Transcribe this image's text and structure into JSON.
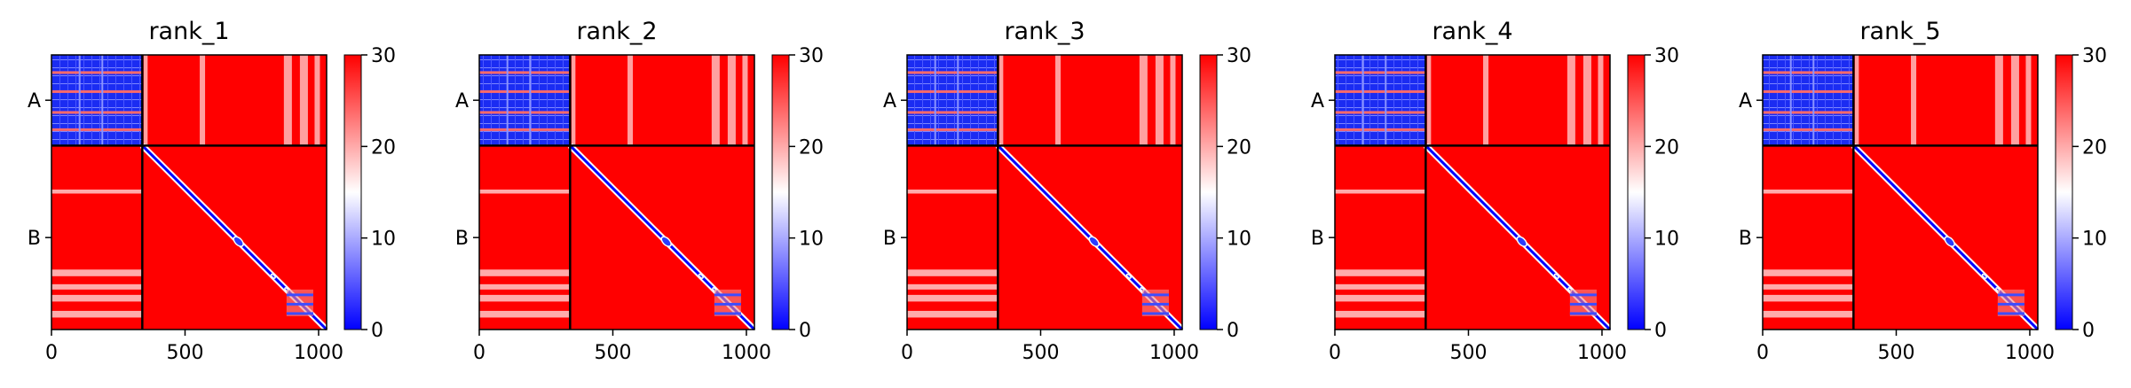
{
  "chart_data": [
    {
      "type": "heatmap",
      "title": "rank_1",
      "xlim": [
        0,
        1030
      ],
      "ylim": [
        1030,
        0
      ],
      "boundary": 340,
      "chains": [
        "A",
        "B"
      ],
      "x_ticks": [
        0,
        500,
        1000
      ],
      "x_tick_labels": [
        "0",
        "500",
        "1000"
      ],
      "colorbar": {
        "min": 0,
        "max": 30,
        "ticks": [
          0,
          10,
          20,
          30
        ],
        "tick_labels": [
          "0",
          "10",
          "20",
          "30"
        ],
        "colors": [
          "#0000ff",
          "#ffffff",
          "#ff0000"
        ]
      },
      "hotspots": [
        [
          880,
          980
        ]
      ]
    },
    {
      "type": "heatmap",
      "title": "rank_2",
      "xlim": [
        0,
        1030
      ],
      "ylim": [
        1030,
        0
      ],
      "boundary": 340,
      "chains": [
        "A",
        "B"
      ],
      "x_ticks": [
        0,
        500,
        1000
      ],
      "x_tick_labels": [
        "0",
        "500",
        "1000"
      ],
      "colorbar": {
        "min": 0,
        "max": 30,
        "ticks": [
          0,
          10,
          20,
          30
        ],
        "tick_labels": [
          "0",
          "10",
          "20",
          "30"
        ],
        "colors": [
          "#0000ff",
          "#ffffff",
          "#ff0000"
        ]
      },
      "hotspots": [
        [
          880,
          980
        ]
      ]
    },
    {
      "type": "heatmap",
      "title": "rank_3",
      "xlim": [
        0,
        1030
      ],
      "ylim": [
        1030,
        0
      ],
      "boundary": 340,
      "chains": [
        "A",
        "B"
      ],
      "x_ticks": [
        0,
        500,
        1000
      ],
      "x_tick_labels": [
        "0",
        "500",
        "1000"
      ],
      "colorbar": {
        "min": 0,
        "max": 30,
        "ticks": [
          0,
          10,
          20,
          30
        ],
        "tick_labels": [
          "0",
          "10",
          "20",
          "30"
        ],
        "colors": [
          "#0000ff",
          "#ffffff",
          "#ff0000"
        ]
      },
      "hotspots": [
        [
          880,
          980
        ]
      ]
    },
    {
      "type": "heatmap",
      "title": "rank_4",
      "xlim": [
        0,
        1030
      ],
      "ylim": [
        1030,
        0
      ],
      "boundary": 340,
      "chains": [
        "A",
        "B"
      ],
      "x_ticks": [
        0,
        500,
        1000
      ],
      "x_tick_labels": [
        "0",
        "500",
        "1000"
      ],
      "colorbar": {
        "min": 0,
        "max": 30,
        "ticks": [
          0,
          10,
          20,
          30
        ],
        "tick_labels": [
          "0",
          "10",
          "20",
          "30"
        ],
        "colors": [
          "#0000ff",
          "#ffffff",
          "#ff0000"
        ]
      },
      "hotspots": [
        [
          880,
          980
        ]
      ]
    },
    {
      "type": "heatmap",
      "title": "rank_5",
      "xlim": [
        0,
        1030
      ],
      "ylim": [
        1030,
        0
      ],
      "boundary": 340,
      "chains": [
        "A",
        "B"
      ],
      "x_ticks": [
        0,
        500,
        1000
      ],
      "x_tick_labels": [
        "0",
        "500",
        "1000"
      ],
      "colorbar": {
        "min": 0,
        "max": 30,
        "ticks": [
          0,
          10,
          20,
          30
        ],
        "tick_labels": [
          "0",
          "10",
          "20",
          "30"
        ],
        "colors": [
          "#0000ff",
          "#ffffff",
          "#ff0000"
        ]
      },
      "hotspots": [
        [
          880,
          980
        ]
      ]
    }
  ]
}
